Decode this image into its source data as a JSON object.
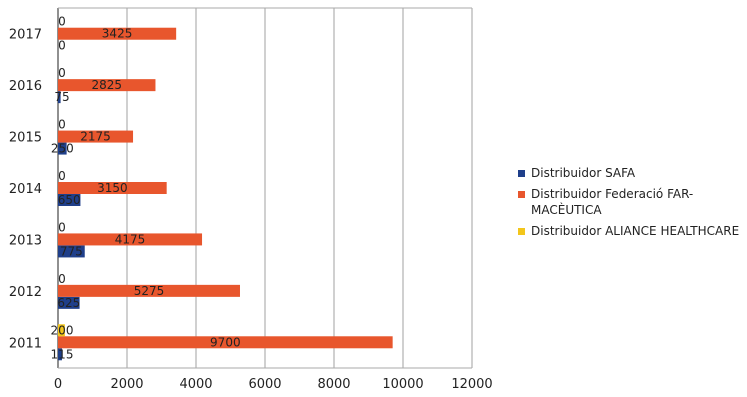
{
  "chart_data": {
    "type": "bar",
    "orientation": "horizontal",
    "categories": [
      "2011",
      "2012",
      "2013",
      "2014",
      "2015",
      "2016",
      "2017"
    ],
    "series": [
      {
        "name": "Distribuidor SAFA",
        "color": "#1f3f8a",
        "values": [
          115,
          625,
          775,
          650,
          250,
          75,
          0
        ],
        "labels": [
          "115",
          "625",
          "775",
          "650",
          "250",
          "75",
          "0"
        ]
      },
      {
        "name": "Distribuidor Federació FAR-MACÈUTICA",
        "color": "#e8562d",
        "values": [
          9700,
          5275,
          4175,
          3150,
          2175,
          2825,
          3425
        ],
        "labels": [
          "9700",
          "5275",
          "4175",
          "3150",
          "2175",
          "2825",
          "3425"
        ]
      },
      {
        "name": "Distribuidor ALIANCE HEALTHCARE",
        "color": "#f3c61b",
        "values": [
          200,
          0,
          0,
          0,
          0,
          0,
          0
        ],
        "labels": [
          "200",
          "0",
          "0",
          "0",
          "0",
          "0",
          "0"
        ]
      }
    ],
    "x_ticks": [
      "0",
      "2000",
      "4000",
      "6000",
      "8000",
      "10000",
      "12000"
    ],
    "xlim": [
      0,
      12000
    ],
    "title": "",
    "xlabel": "",
    "ylabel": "",
    "grid": "vertical",
    "legend_position": "right"
  }
}
